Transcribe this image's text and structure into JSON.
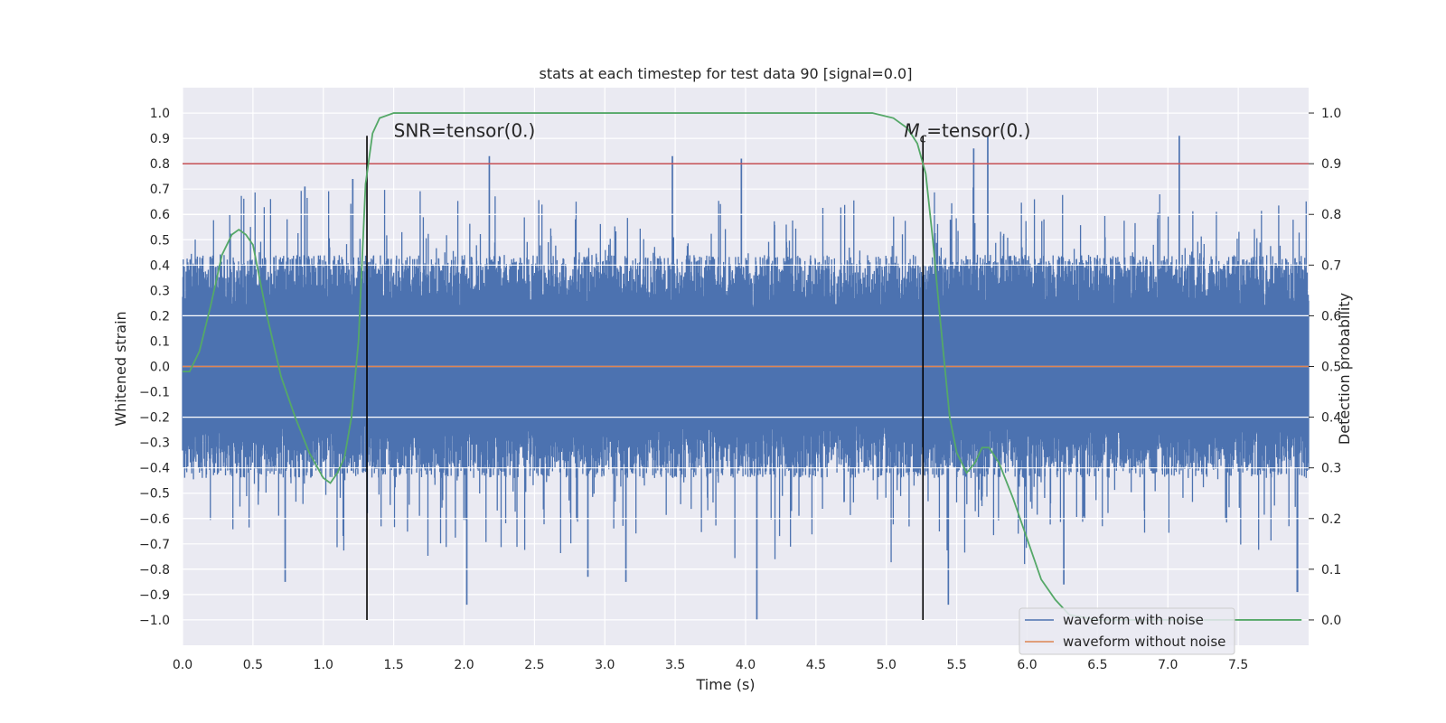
{
  "chart_data": {
    "type": "line",
    "title": "stats at each timestep for test data 90 [signal=0.0]",
    "xlabel": "Time (s)",
    "ylabel": "Whitened strain",
    "y2label": "Detection probability",
    "xlim": [
      0,
      8
    ],
    "ylim": [
      -1.1,
      1.1
    ],
    "y2lim": [
      -0.05,
      1.05
    ],
    "xticks": [
      "0.0",
      "0.5",
      "1.0",
      "1.5",
      "2.0",
      "2.5",
      "3.0",
      "3.5",
      "4.0",
      "4.5",
      "5.0",
      "5.5",
      "6.0",
      "6.5",
      "7.0",
      "7.5"
    ],
    "yticks": [
      "1.0",
      "0.9",
      "0.8",
      "0.7",
      "0.6",
      "0.5",
      "0.4",
      "0.3",
      "0.2",
      "0.1",
      "0.0",
      "−0.1",
      "−0.2",
      "−0.3",
      "−0.4",
      "−0.5",
      "−0.6",
      "−0.7",
      "−0.8",
      "−0.9",
      "−1.0"
    ],
    "y2ticks": [
      "1.0",
      "0.9",
      "0.8",
      "0.7",
      "0.6",
      "0.5",
      "0.4",
      "0.3",
      "0.2",
      "0.1",
      "0.0"
    ],
    "grid": true,
    "legend_position": "lower-right",
    "series": [
      {
        "name": "waveform with noise",
        "color": "#4c72b0",
        "description_values": "dense noise, typical envelope ±0.35, peaks to +0.91 / −1.0",
        "peaks": [
          {
            "x": 0.73,
            "y": -0.85
          },
          {
            "x": 0.87,
            "y": 0.71
          },
          {
            "x": 1.21,
            "y": 0.74
          },
          {
            "x": 2.02,
            "y": -0.94
          },
          {
            "x": 2.18,
            "y": 0.83
          },
          {
            "x": 2.88,
            "y": -0.83
          },
          {
            "x": 3.15,
            "y": -0.85
          },
          {
            "x": 3.48,
            "y": 0.83
          },
          {
            "x": 3.97,
            "y": 0.82
          },
          {
            "x": 4.08,
            "y": -1.0
          },
          {
            "x": 5.44,
            "y": -0.94
          },
          {
            "x": 5.72,
            "y": 0.91
          },
          {
            "x": 5.62,
            "y": 0.86
          },
          {
            "x": 6.26,
            "y": -0.86
          },
          {
            "x": 7.08,
            "y": 0.91
          },
          {
            "x": 7.92,
            "y": -0.89
          }
        ]
      },
      {
        "name": "waveform without noise",
        "color": "#dd8452",
        "x": [
          0,
          8
        ],
        "y": [
          0,
          0
        ]
      },
      {
        "name": "",
        "axis": "right",
        "color": "#55a868",
        "x": [
          0.0,
          0.05,
          0.12,
          0.2,
          0.28,
          0.35,
          0.4,
          0.45,
          0.5,
          0.6,
          0.7,
          0.8,
          0.9,
          1.0,
          1.05,
          1.1,
          1.15,
          1.2,
          1.25,
          1.3,
          1.35,
          1.4,
          1.5,
          2.0,
          3.0,
          4.0,
          4.9,
          5.05,
          5.15,
          5.22,
          5.28,
          5.33,
          5.38,
          5.45,
          5.5,
          5.57,
          5.63,
          5.68,
          5.73,
          5.8,
          5.9,
          6.0,
          6.1,
          6.2,
          6.3,
          6.5,
          7.0,
          7.95
        ],
        "y": [
          0.49,
          0.49,
          0.53,
          0.62,
          0.72,
          0.76,
          0.77,
          0.76,
          0.74,
          0.6,
          0.48,
          0.4,
          0.33,
          0.28,
          0.27,
          0.29,
          0.32,
          0.4,
          0.55,
          0.86,
          0.96,
          0.99,
          1.0,
          1.0,
          1.0,
          1.0,
          1.0,
          0.99,
          0.97,
          0.94,
          0.88,
          0.75,
          0.6,
          0.4,
          0.33,
          0.29,
          0.31,
          0.34,
          0.34,
          0.31,
          0.24,
          0.16,
          0.08,
          0.04,
          0.01,
          0.0,
          0.0,
          0.0
        ]
      }
    ],
    "hlines": [
      {
        "y2": 0.9,
        "color": "#c44e52"
      }
    ],
    "vlines": [
      {
        "x": 1.31,
        "color": "#000000",
        "ymin": -1.0,
        "ymax": 0.91
      },
      {
        "x": 5.26,
        "color": "#000000",
        "ymin": -1.0,
        "ymax": 0.91
      }
    ],
    "annotations": [
      {
        "text": "SNR=tensor(0.)",
        "x": 1.5,
        "y": 0.92
      },
      {
        "text": "=tensor(0.)",
        "math_prefix": "M",
        "math_sub": "c",
        "x": 5.1,
        "y": 0.92
      }
    ],
    "legend": [
      "waveform with noise",
      "waveform without noise"
    ]
  }
}
